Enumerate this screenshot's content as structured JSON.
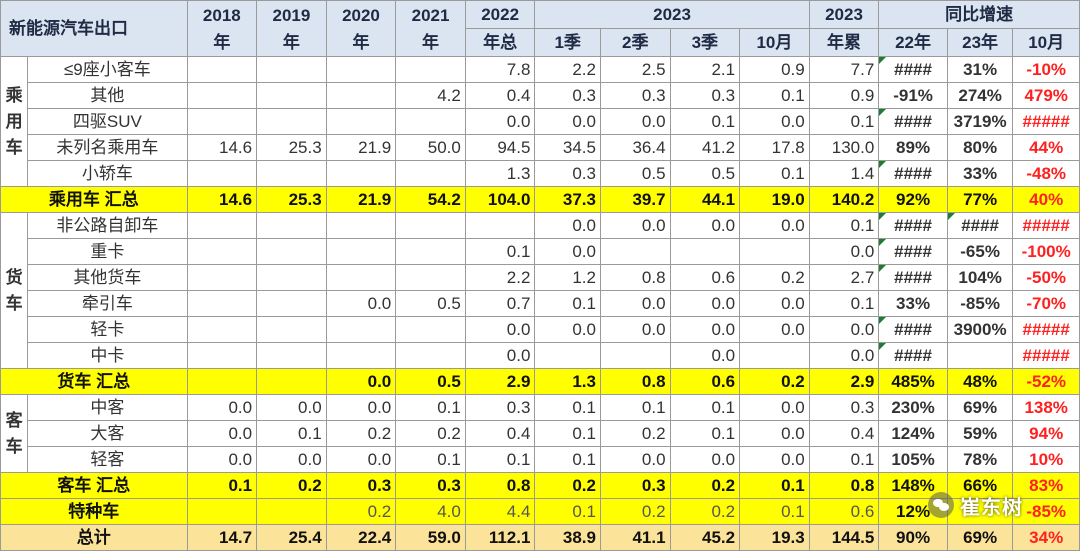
{
  "header": {
    "title": "新能源汽车出口",
    "y2018": [
      "2018",
      "年"
    ],
    "y2019": [
      "2019",
      "年"
    ],
    "y2020": [
      "2020",
      "年"
    ],
    "y2021": [
      "2021",
      "年"
    ],
    "y2022": [
      "2022",
      "年总"
    ],
    "y2023": "2023",
    "q1": "1季",
    "q2": "2季",
    "q3": "3季",
    "oct": "10月",
    "y2023cum": [
      "2023",
      "年累"
    ],
    "yoy": "同比增速",
    "yoy22": "22年",
    "yoy23": "23年",
    "yoyoct": "10月"
  },
  "groups": {
    "passenger": "乘用车",
    "truck": "货车",
    "bus": "客车"
  },
  "rows": [
    {
      "name": "≤9座小客车",
      "v": [
        "",
        "",
        "",
        "",
        "7.8",
        "2.2",
        "2.5",
        "2.1",
        "0.9",
        "7.7"
      ],
      "g": [
        "####",
        "31%",
        "-10%"
      ],
      "flag": [
        true,
        false,
        false
      ],
      "red": [
        false,
        false,
        true
      ]
    },
    {
      "name": "其他",
      "v": [
        "",
        "",
        "",
        "4.2",
        "0.4",
        "0.3",
        "0.3",
        "0.3",
        "0.1",
        "0.9"
      ],
      "g": [
        "-91%",
        "274%",
        "479%"
      ],
      "flag": [
        false,
        false,
        false
      ],
      "red": [
        false,
        false,
        true
      ]
    },
    {
      "name": "四驱SUV",
      "v": [
        "",
        "",
        "",
        "",
        "0.0",
        "0.0",
        "0.0",
        "0.1",
        "0.0",
        "0.1"
      ],
      "g": [
        "####",
        "3719%",
        "#####"
      ],
      "flag": [
        true,
        false,
        false
      ],
      "red": [
        false,
        false,
        true
      ]
    },
    {
      "name": "未列名乘用车",
      "v": [
        "14.6",
        "25.3",
        "21.9",
        "50.0",
        "94.5",
        "34.5",
        "36.4",
        "41.2",
        "17.8",
        "130.0"
      ],
      "g": [
        "89%",
        "80%",
        "44%"
      ],
      "flag": [
        false,
        false,
        false
      ],
      "red": [
        false,
        false,
        true
      ]
    },
    {
      "name": "小轿车",
      "v": [
        "",
        "",
        "",
        "",
        "1.3",
        "0.3",
        "0.5",
        "0.5",
        "0.1",
        "1.4"
      ],
      "g": [
        "####",
        "33%",
        "-48%"
      ],
      "flag": [
        true,
        false,
        false
      ],
      "red": [
        false,
        false,
        true
      ]
    },
    {
      "name": "乘用车 汇总",
      "v": [
        "14.6",
        "25.3",
        "21.9",
        "54.2",
        "104.0",
        "37.3",
        "39.7",
        "44.1",
        "19.0",
        "140.2"
      ],
      "g": [
        "92%",
        "77%",
        "40%"
      ],
      "flag": [
        false,
        false,
        false
      ],
      "red": [
        false,
        false,
        true
      ]
    },
    {
      "name": "非公路自卸车",
      "v": [
        "",
        "",
        "",
        "",
        "",
        "0.0",
        "0.0",
        "0.0",
        "0.0",
        "0.1"
      ],
      "g": [
        "####",
        "####",
        "#####"
      ],
      "flag": [
        true,
        true,
        false
      ],
      "red": [
        false,
        false,
        true
      ]
    },
    {
      "name": "重卡",
      "v": [
        "",
        "",
        "",
        "",
        "0.1",
        "0.0",
        "",
        "",
        "",
        "0.0"
      ],
      "g": [
        "####",
        "-65%",
        "-100%"
      ],
      "flag": [
        true,
        false,
        false
      ],
      "red": [
        false,
        false,
        true
      ]
    },
    {
      "name": "其他货车",
      "v": [
        "",
        "",
        "",
        "",
        "2.2",
        "1.2",
        "0.8",
        "0.6",
        "0.2",
        "2.7"
      ],
      "g": [
        "####",
        "104%",
        "-50%"
      ],
      "flag": [
        true,
        false,
        false
      ],
      "red": [
        false,
        false,
        true
      ]
    },
    {
      "name": "牵引车",
      "v": [
        "",
        "",
        "0.0",
        "0.5",
        "0.7",
        "0.1",
        "0.0",
        "0.0",
        "0.0",
        "0.1"
      ],
      "g": [
        "33%",
        "-85%",
        "-70%"
      ],
      "flag": [
        false,
        false,
        false
      ],
      "red": [
        false,
        false,
        true
      ]
    },
    {
      "name": "轻卡",
      "v": [
        "",
        "",
        "",
        "",
        "0.0",
        "0.0",
        "0.0",
        "0.0",
        "0.0",
        "0.0"
      ],
      "g": [
        "####",
        "3900%",
        "#####"
      ],
      "flag": [
        true,
        false,
        false
      ],
      "red": [
        false,
        false,
        true
      ]
    },
    {
      "name": "中卡",
      "v": [
        "",
        "",
        "",
        "",
        "0.0",
        "",
        "",
        "0.0",
        "",
        "0.0"
      ],
      "g": [
        "####",
        "",
        "#####"
      ],
      "flag": [
        true,
        false,
        false
      ],
      "red": [
        false,
        false,
        true
      ]
    },
    {
      "name": "货车 汇总",
      "v": [
        "",
        "",
        "0.0",
        "0.5",
        "2.9",
        "1.3",
        "0.8",
        "0.6",
        "0.2",
        "2.9"
      ],
      "g": [
        "485%",
        "48%",
        "-52%"
      ],
      "flag": [
        false,
        false,
        false
      ],
      "red": [
        false,
        false,
        true
      ]
    },
    {
      "name": "中客",
      "v": [
        "0.0",
        "0.0",
        "0.0",
        "0.1",
        "0.3",
        "0.1",
        "0.1",
        "0.1",
        "0.0",
        "0.3"
      ],
      "g": [
        "230%",
        "69%",
        "138%"
      ],
      "flag": [
        false,
        false,
        false
      ],
      "red": [
        false,
        false,
        true
      ]
    },
    {
      "name": "大客",
      "v": [
        "0.0",
        "0.1",
        "0.2",
        "0.2",
        "0.4",
        "0.1",
        "0.2",
        "0.1",
        "0.0",
        "0.4"
      ],
      "g": [
        "124%",
        "59%",
        "94%"
      ],
      "flag": [
        false,
        false,
        false
      ],
      "red": [
        false,
        false,
        true
      ]
    },
    {
      "name": "轻客",
      "v": [
        "0.0",
        "0.0",
        "0.0",
        "0.1",
        "0.1",
        "0.1",
        "0.0",
        "0.0",
        "0.0",
        "0.1"
      ],
      "g": [
        "105%",
        "78%",
        "10%"
      ],
      "flag": [
        false,
        false,
        false
      ],
      "red": [
        false,
        false,
        true
      ]
    },
    {
      "name": "客车 汇总",
      "v": [
        "0.1",
        "0.2",
        "0.3",
        "0.3",
        "0.8",
        "0.2",
        "0.3",
        "0.2",
        "0.1",
        "0.8"
      ],
      "g": [
        "148%",
        "66%",
        "83%"
      ],
      "flag": [
        false,
        false,
        false
      ],
      "red": [
        false,
        false,
        true
      ]
    },
    {
      "name": "特种车",
      "v": [
        "",
        "",
        "0.2",
        "4.0",
        "4.4",
        "0.1",
        "0.2",
        "0.2",
        "0.1",
        "0.6"
      ],
      "g": [
        "12%",
        "",
        "-85%"
      ],
      "flag": [
        false,
        false,
        false
      ],
      "red": [
        false,
        false,
        true
      ]
    },
    {
      "name": "总计",
      "v": [
        "14.7",
        "25.4",
        "22.4",
        "59.0",
        "112.1",
        "38.9",
        "41.1",
        "45.2",
        "19.3",
        "144.5"
      ],
      "g": [
        "90%",
        "69%",
        "34%"
      ],
      "flag": [
        false,
        false,
        false
      ],
      "red": [
        false,
        false,
        true
      ]
    }
  ],
  "watermark": "崔东树"
}
